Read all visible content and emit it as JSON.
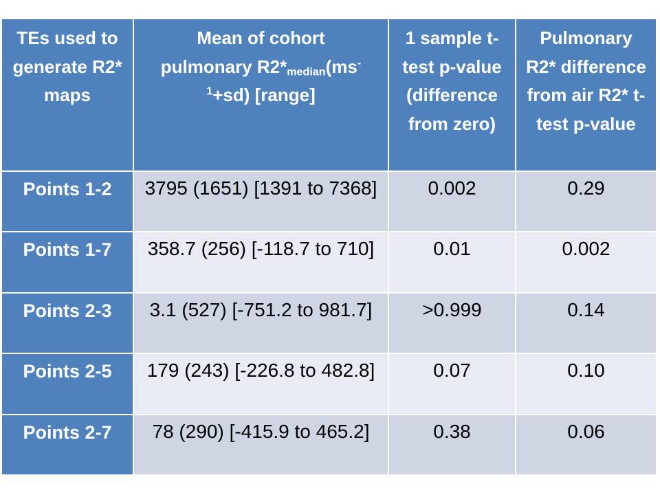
{
  "table": {
    "accent_color": "#4F81BD",
    "band_dark_color": "#D0D5E4",
    "band_light_color": "#E9EBF4",
    "header_text_color": "#FFFFFF",
    "body_text_color": "#000000",
    "columns": [
      {
        "id": "te",
        "label": "TEs used to\ngenerate R2*\nmaps"
      },
      {
        "id": "mean",
        "label_plain": "Mean of cohort pulmonary R2*median(ms-1+sd) [range]",
        "label_rich": [
          {
            "t": "text",
            "v": "Mean of cohort"
          },
          {
            "t": "br"
          },
          {
            "t": "text",
            "v": "pulmonary R2*"
          },
          {
            "t": "sub",
            "v": "median"
          },
          {
            "t": "text",
            "v": "(ms"
          },
          {
            "t": "sup",
            "v": "-"
          },
          {
            "t": "br"
          },
          {
            "t": "sup",
            "v": "1"
          },
          {
            "t": "text",
            "v": "+sd) [range]"
          }
        ]
      },
      {
        "id": "p_zero",
        "label": "1 sample t-\ntest p-value\n(difference\nfrom zero)"
      },
      {
        "id": "p_air",
        "label": "Pulmonary\nR2* difference\nfrom air R2* t-\ntest p-value"
      }
    ],
    "rows": [
      {
        "te": "Points 1-2",
        "mean": "3795 (1651) [1391 to 7368]",
        "p_zero": "0.002",
        "p_air": "0.29"
      },
      {
        "te": "Points 1-7",
        "mean": "358.7 (256) [-118.7 to 710]",
        "p_zero": "0.01",
        "p_air": "0.002"
      },
      {
        "te": "Points 2-3",
        "mean": "3.1 (527) [-751.2 to 981.7]",
        "p_zero": ">0.999",
        "p_air": "0.14"
      },
      {
        "te": "Points 2-5",
        "mean": "179 (243) [-226.8 to 482.8]",
        "p_zero": "0.07",
        "p_air": "0.10"
      },
      {
        "te": "Points 2-7",
        "mean": "78 (290) [-415.9 to 465.2]",
        "p_zero": "0.38",
        "p_air": "0.06"
      }
    ]
  },
  "chart_data": {
    "type": "table",
    "columns": [
      "TEs used to generate R2* maps",
      "Mean of cohort pulmonary R2*median(ms-1+sd) [range]",
      "1 sample t-test p-value (difference from zero)",
      "Pulmonary R2* difference from air R2* t-test p-value"
    ],
    "rows": [
      [
        "Points 1-2",
        "3795 (1651) [1391 to 7368]",
        "0.002",
        "0.29"
      ],
      [
        "Points 1-7",
        "358.7 (256) [-118.7 to 710]",
        "0.01",
        "0.002"
      ],
      [
        "Points 2-3",
        "3.1 (527) [-751.2 to 981.7]",
        ">0.999",
        "0.14"
      ],
      [
        "Points 2-5",
        "179 (243) [-226.8 to 482.8]",
        "0.07",
        "0.10"
      ],
      [
        "Points 2-7",
        "78 (290) [-415.9 to 465.2]",
        "0.38",
        "0.06"
      ]
    ]
  }
}
